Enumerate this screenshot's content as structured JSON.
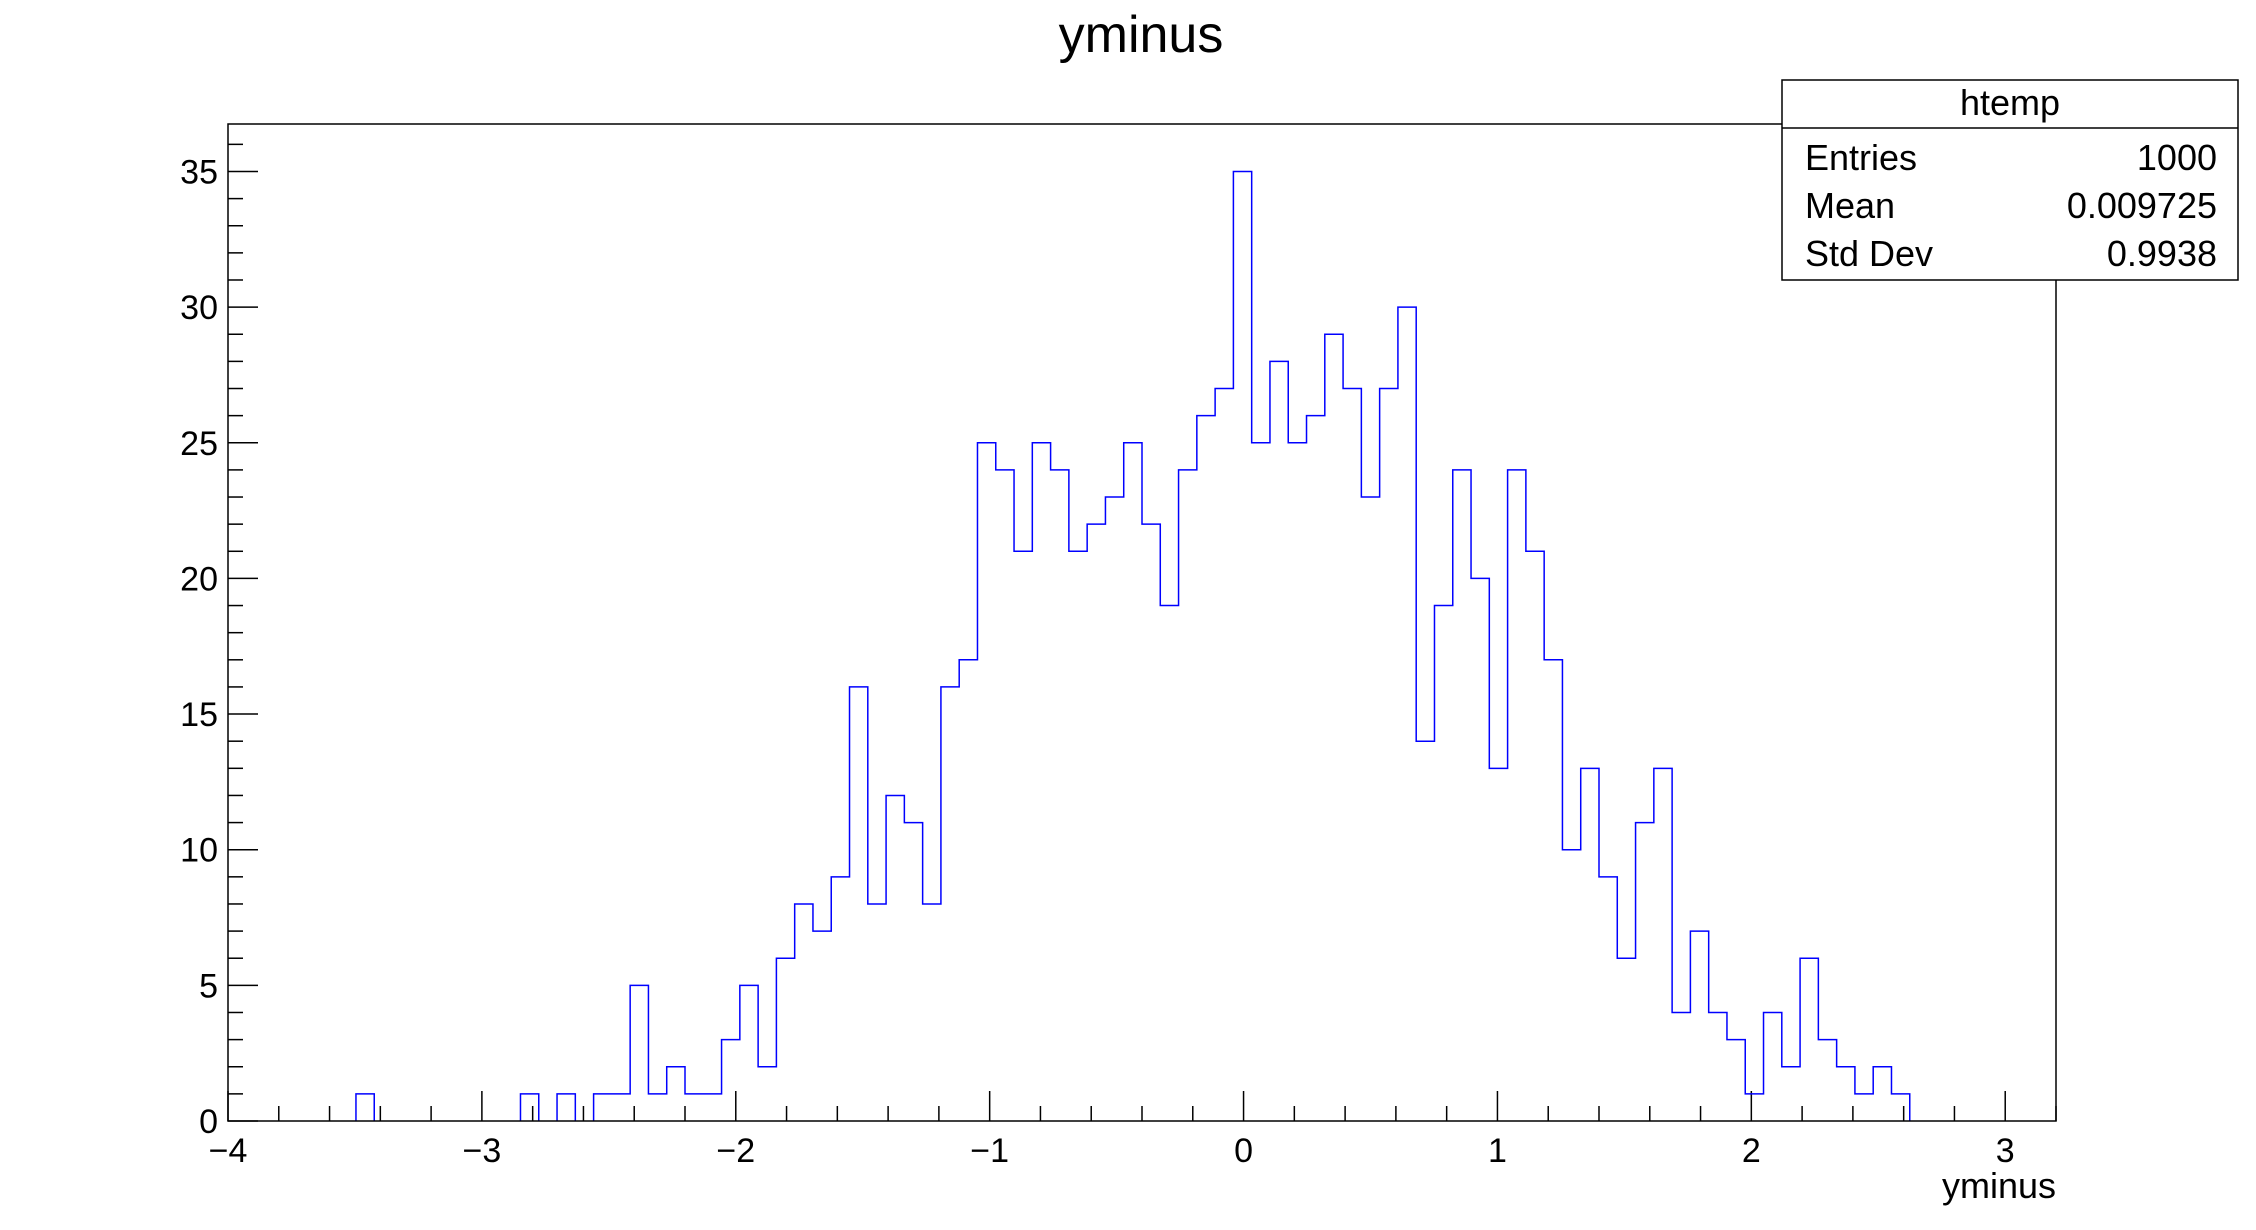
{
  "chart_data": {
    "type": "bar",
    "histogram": true,
    "title": "yminus",
    "xlabel": "yminus",
    "ylabel": "",
    "xlim": [
      -4,
      3.2
    ],
    "ylim": [
      0,
      36.75
    ],
    "x_ticks": [
      -4,
      -3,
      -2,
      -1,
      0,
      1,
      2,
      3
    ],
    "x_tick_labels": [
      "−4",
      "−3",
      "−2",
      "−1",
      "0",
      "1",
      "2",
      "3"
    ],
    "y_ticks": [
      0,
      5,
      10,
      15,
      20,
      25,
      30,
      35
    ],
    "y_tick_labels": [
      "0",
      "5",
      "10",
      "15",
      "20",
      "25",
      "30",
      "35"
    ],
    "bin_width": 0.072,
    "bins": [
      {
        "x": -3.496,
        "value": 1
      },
      {
        "x": -2.848,
        "value": 1
      },
      {
        "x": -2.704,
        "value": 1
      },
      {
        "x": -2.56,
        "value": 1
      },
      {
        "x": -2.488,
        "value": 1
      },
      {
        "x": -2.416,
        "value": 5
      },
      {
        "x": -2.344,
        "value": 1
      },
      {
        "x": -2.272,
        "value": 2
      },
      {
        "x": -2.2,
        "value": 1
      },
      {
        "x": -2.128,
        "value": 1
      },
      {
        "x": -2.056,
        "value": 3
      },
      {
        "x": -1.984,
        "value": 5
      },
      {
        "x": -1.912,
        "value": 2
      },
      {
        "x": -1.84,
        "value": 6
      },
      {
        "x": -1.768,
        "value": 8
      },
      {
        "x": -1.696,
        "value": 7
      },
      {
        "x": -1.624,
        "value": 9
      },
      {
        "x": -1.552,
        "value": 16
      },
      {
        "x": -1.48,
        "value": 8
      },
      {
        "x": -1.408,
        "value": 12
      },
      {
        "x": -1.336,
        "value": 11
      },
      {
        "x": -1.264,
        "value": 8
      },
      {
        "x": -1.192,
        "value": 16
      },
      {
        "x": -1.12,
        "value": 17
      },
      {
        "x": -1.048,
        "value": 25
      },
      {
        "x": -0.976,
        "value": 24
      },
      {
        "x": -0.904,
        "value": 21
      },
      {
        "x": -0.832,
        "value": 25
      },
      {
        "x": -0.76,
        "value": 24
      },
      {
        "x": -0.688,
        "value": 21
      },
      {
        "x": -0.616,
        "value": 22
      },
      {
        "x": -0.544,
        "value": 23
      },
      {
        "x": -0.472,
        "value": 25
      },
      {
        "x": -0.4,
        "value": 22
      },
      {
        "x": -0.328,
        "value": 19
      },
      {
        "x": -0.256,
        "value": 24
      },
      {
        "x": -0.184,
        "value": 26
      },
      {
        "x": -0.112,
        "value": 27
      },
      {
        "x": -0.04,
        "value": 35
      },
      {
        "x": 0.032,
        "value": 25
      },
      {
        "x": 0.104,
        "value": 28
      },
      {
        "x": 0.176,
        "value": 25
      },
      {
        "x": 0.248,
        "value": 26
      },
      {
        "x": 0.32,
        "value": 29
      },
      {
        "x": 0.392,
        "value": 27
      },
      {
        "x": 0.464,
        "value": 23
      },
      {
        "x": 0.536,
        "value": 27
      },
      {
        "x": 0.608,
        "value": 30
      },
      {
        "x": 0.68,
        "value": 14
      },
      {
        "x": 0.752,
        "value": 19
      },
      {
        "x": 0.824,
        "value": 24
      },
      {
        "x": 0.896,
        "value": 20
      },
      {
        "x": 0.968,
        "value": 13
      },
      {
        "x": 1.04,
        "value": 24
      },
      {
        "x": 1.112,
        "value": 21
      },
      {
        "x": 1.184,
        "value": 17
      },
      {
        "x": 1.256,
        "value": 10
      },
      {
        "x": 1.328,
        "value": 13
      },
      {
        "x": 1.4,
        "value": 9
      },
      {
        "x": 1.472,
        "value": 6
      },
      {
        "x": 1.544,
        "value": 11
      },
      {
        "x": 1.616,
        "value": 13
      },
      {
        "x": 1.688,
        "value": 4
      },
      {
        "x": 1.76,
        "value": 7
      },
      {
        "x": 1.832,
        "value": 4
      },
      {
        "x": 1.904,
        "value": 3
      },
      {
        "x": 1.976,
        "value": 1
      },
      {
        "x": 2.048,
        "value": 4
      },
      {
        "x": 2.12,
        "value": 2
      },
      {
        "x": 2.192,
        "value": 6
      },
      {
        "x": 2.264,
        "value": 3
      },
      {
        "x": 2.336,
        "value": 2
      },
      {
        "x": 2.408,
        "value": 1
      },
      {
        "x": 2.48,
        "value": 2
      },
      {
        "x": 2.552,
        "value": 1
      }
    ],
    "line_color": "#0000ff",
    "stats_box": {
      "title": "htemp",
      "rows": [
        {
          "label": "Entries",
          "value": "1000"
        },
        {
          "label": "Mean",
          "value": "0.009725"
        },
        {
          "label": "Std Dev",
          "value": "0.9938"
        }
      ]
    }
  }
}
